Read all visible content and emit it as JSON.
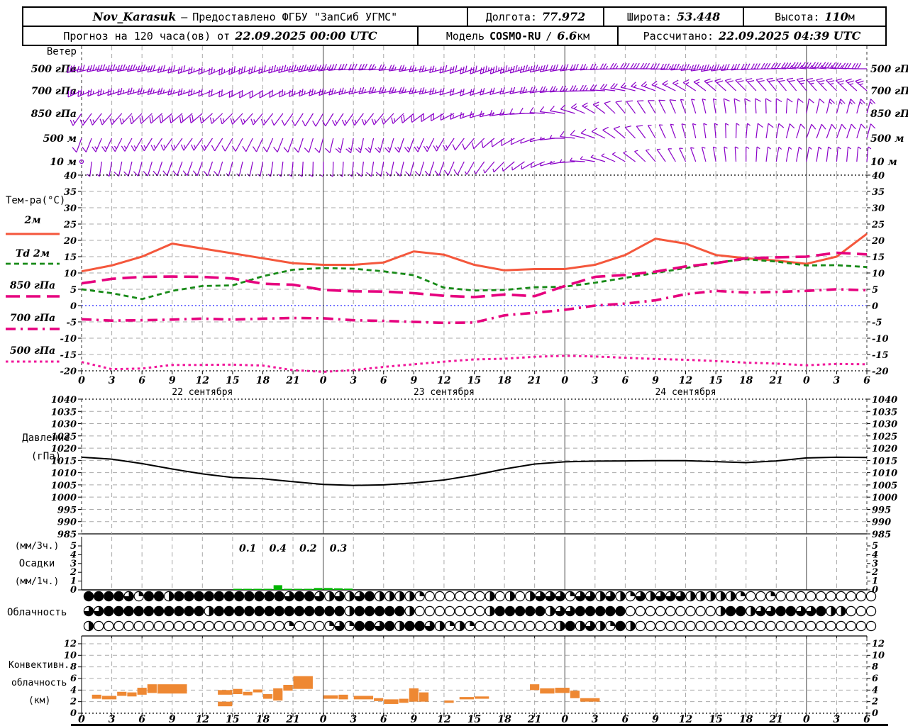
{
  "header": {
    "row1": {
      "station": "Nov_Karasuk",
      "dash": "–",
      "provided": "Предоставлено ФГБУ \"ЗапСиб УГМС\"",
      "lon_label": "Долгота:",
      "lon_value": "77.972",
      "lat_label": "Широта:",
      "lat_value": "53.448",
      "alt_label": "Высота:",
      "alt_value": "110",
      "alt_unit": "м"
    },
    "row2": {
      "forecast_label": "Прогноз на 120 часа(ов) от",
      "forecast_time": "22.09.2025 00:00 UTC",
      "model_label": "Модель",
      "model_name": "COSMO-RU",
      "model_slash": "/",
      "model_res": "6.6",
      "model_res_unit": "км",
      "calc_label": "Рассчитано:",
      "calc_time": "22.09.2025 04:39 UTC"
    }
  },
  "chart_data": {
    "type": "meteogram",
    "x_axis": {
      "hours_range": [
        0,
        78
      ],
      "hours_step": 3,
      "hour_labels": [
        "0",
        "3",
        "6",
        "9",
        "12",
        "15",
        "18",
        "21",
        "0",
        "3",
        "6",
        "9",
        "12",
        "15",
        "18",
        "21",
        "0",
        "3",
        "6",
        "9",
        "12",
        "15",
        "18",
        "21",
        "0",
        "3",
        "6"
      ],
      "date_labels": [
        {
          "text": "22 сентября",
          "hour": 12
        },
        {
          "text": "23 сентября",
          "hour": 36
        },
        {
          "text": "24 сентября",
          "hour": 60
        }
      ]
    },
    "hours_3h": [
      0,
      3,
      6,
      9,
      12,
      15,
      18,
      21,
      24,
      27,
      30,
      33,
      36,
      39,
      42,
      45,
      48,
      51,
      54,
      57,
      60,
      63,
      66,
      69,
      72,
      75,
      78
    ],
    "wind": {
      "panel_label": "Ветер",
      "barb_color": "#8A00C8",
      "levels": [
        {
          "label": "500 гПа",
          "dir_deg": [
            255,
            260,
            260,
            255,
            250,
            245,
            250,
            255,
            260,
            265,
            265,
            260,
            255,
            250,
            250,
            255,
            260,
            265,
            270,
            270,
            265,
            260,
            265,
            270,
            275,
            275,
            270
          ],
          "speed_ms": [
            16,
            18,
            18,
            16,
            14,
            14,
            16,
            18,
            18,
            16,
            14,
            12,
            14,
            16,
            18,
            18,
            16,
            14,
            14,
            16,
            18,
            18,
            16,
            16,
            18,
            18,
            16
          ]
        },
        {
          "label": "700 гПа",
          "dir_deg": [
            245,
            250,
            255,
            255,
            250,
            245,
            240,
            245,
            250,
            255,
            260,
            260,
            255,
            250,
            255,
            260,
            265,
            270,
            280,
            290,
            300,
            310,
            315,
            320,
            320,
            315,
            310
          ],
          "speed_ms": [
            12,
            12,
            14,
            12,
            12,
            10,
            10,
            12,
            12,
            14,
            14,
            12,
            12,
            10,
            10,
            12,
            12,
            12,
            10,
            8,
            8,
            10,
            10,
            10,
            12,
            12,
            12
          ]
        },
        {
          "label": "850 гПа",
          "dir_deg": [
            215,
            220,
            225,
            230,
            230,
            225,
            220,
            215,
            210,
            215,
            220,
            230,
            240,
            250,
            260,
            270,
            280,
            300,
            320,
            330,
            340,
            350,
            355,
            0,
            10,
            15,
            15
          ],
          "speed_ms": [
            8,
            8,
            10,
            10,
            10,
            8,
            8,
            6,
            6,
            8,
            8,
            10,
            10,
            8,
            8,
            6,
            6,
            8,
            6,
            6,
            4,
            4,
            6,
            6,
            6,
            8,
            8
          ]
        },
        {
          "label": "500 м",
          "dir_deg": [
            200,
            205,
            210,
            215,
            215,
            210,
            205,
            200,
            195,
            190,
            195,
            200,
            210,
            220,
            235,
            250,
            270,
            290,
            310,
            330,
            345,
            355,
            5,
            10,
            20,
            20,
            15
          ],
          "speed_ms": [
            6,
            8,
            8,
            8,
            8,
            6,
            6,
            6,
            6,
            8,
            8,
            8,
            8,
            6,
            6,
            4,
            4,
            6,
            6,
            4,
            4,
            4,
            4,
            6,
            6,
            6,
            6
          ]
        },
        {
          "label": "10 м",
          "dir_deg": [
            185,
            190,
            195,
            200,
            200,
            195,
            190,
            185,
            180,
            185,
            190,
            195,
            200,
            210,
            225,
            240,
            260,
            280,
            300,
            320,
            335,
            350,
            0,
            10,
            10,
            5,
            5
          ],
          "speed_ms": [
            1,
            4,
            6,
            6,
            6,
            4,
            4,
            4,
            4,
            4,
            6,
            6,
            6,
            4,
            4,
            2,
            2,
            4,
            4,
            2,
            2,
            2,
            2,
            4,
            4,
            4,
            4
          ]
        }
      ]
    },
    "temperature": {
      "panel_label": "Тем-ра(°C)",
      "ylim": [
        -20,
        40
      ],
      "yticks": [
        40,
        35,
        30,
        25,
        20,
        15,
        10,
        5,
        0,
        -5,
        -10,
        -15,
        -20
      ],
      "zero_line_color": "#4848FF",
      "series": [
        {
          "key": "t2m",
          "label": "2м",
          "color": "#F4573C",
          "style": "solid",
          "values": [
            10.5,
            12.3,
            15.0,
            19.0,
            17.5,
            16.0,
            14.5,
            13.0,
            12.5,
            12.5,
            13.2,
            16.6,
            15.6,
            12.5,
            10.8,
            11.2,
            11.2,
            12.5,
            15.5,
            20.5,
            19.0,
            15.5,
            14.5,
            13.8,
            12.8,
            15.0,
            22.0
          ]
        },
        {
          "key": "td2m",
          "label": "Td  2м",
          "color": "#178A17",
          "style": "dashed",
          "values": [
            5.0,
            3.8,
            2.0,
            4.5,
            6.0,
            6.2,
            9.0,
            11.0,
            11.5,
            11.3,
            10.5,
            9.3,
            5.5,
            4.6,
            4.8,
            5.6,
            5.8,
            7.0,
            8.5,
            10.0,
            11.5,
            13.2,
            14.2,
            13.5,
            12.3,
            12.4,
            11.8
          ]
        },
        {
          "key": "t850",
          "label": "850 гПа",
          "color": "#E6007E",
          "style": "longdash",
          "values": [
            6.8,
            8.2,
            8.8,
            8.9,
            8.8,
            8.3,
            6.7,
            6.4,
            4.8,
            4.4,
            4.3,
            3.8,
            3.0,
            2.6,
            3.4,
            2.9,
            6.0,
            8.8,
            9.4,
            10.4,
            12.0,
            13.0,
            14.5,
            14.8,
            15.0,
            16.2,
            15.7
          ]
        },
        {
          "key": "t700",
          "label": "700 гПа",
          "color": "#E6007E",
          "style": "dashdot",
          "values": [
            -4.2,
            -4.6,
            -4.5,
            -4.3,
            -4.0,
            -4.3,
            -4.0,
            -3.8,
            -3.9,
            -4.5,
            -4.7,
            -5.0,
            -5.3,
            -5.2,
            -3.0,
            -2.2,
            -1.3,
            0.0,
            0.6,
            1.6,
            3.5,
            4.5,
            4.0,
            4.2,
            4.5,
            5.0,
            4.7
          ]
        },
        {
          "key": "t500",
          "label": "500 гПа",
          "color": "#F0189B",
          "style": "dotted",
          "values": [
            -17.3,
            -19.5,
            -19.3,
            -18.2,
            -18.2,
            -18.1,
            -18.4,
            -19.8,
            -20.3,
            -19.8,
            -18.8,
            -18.0,
            -17.2,
            -16.5,
            -16.3,
            -15.7,
            -15.4,
            -15.6,
            -16.0,
            -16.4,
            -16.6,
            -17.0,
            -17.5,
            -17.8,
            -18.3,
            -17.9,
            -18.0
          ]
        }
      ]
    },
    "pressure": {
      "panel_label_1": "Давление",
      "panel_label_2": "(гПа)",
      "ylim": [
        985,
        1040
      ],
      "yticks": [
        1040,
        1035,
        1030,
        1025,
        1020,
        1015,
        1010,
        1005,
        1000,
        995,
        990,
        985
      ],
      "color": "#000000",
      "values": [
        1016.3,
        1015.5,
        1013.7,
        1011.5,
        1009.5,
        1008.0,
        1007.5,
        1006.3,
        1005.2,
        1004.8,
        1005.0,
        1005.8,
        1007.0,
        1009.0,
        1011.5,
        1013.5,
        1014.4,
        1014.7,
        1014.8,
        1014.9,
        1014.9,
        1014.5,
        1014.1,
        1014.8,
        1016.0,
        1016.3,
        1016.2
      ]
    },
    "precipitation": {
      "panel_labels": [
        "(мм/3ч.)",
        "Осадки",
        "(мм/1ч.)"
      ],
      "yticks": [
        5,
        4,
        3,
        2,
        1,
        0
      ],
      "bar_color": "#00B400",
      "sum_3h_labels": [
        {
          "hour_center": 16.5,
          "text": "0.1"
        },
        {
          "hour_center": 19.5,
          "text": "0.4"
        },
        {
          "hour_center": 22.5,
          "text": "0.2"
        },
        {
          "hour_center": 25.5,
          "text": "0.3"
        }
      ],
      "hourly_mm": [
        {
          "h": 15,
          "v": 0.02
        },
        {
          "h": 16,
          "v": 0.06
        },
        {
          "h": 17,
          "v": 0.02
        },
        {
          "h": 18,
          "v": 0.03
        },
        {
          "h": 19,
          "v": 0.3
        },
        {
          "h": 20,
          "v": 0.07
        },
        {
          "h": 21,
          "v": 0.02
        },
        {
          "h": 22,
          "v": 0.06
        },
        {
          "h": 23,
          "v": 0.12
        },
        {
          "h": 24,
          "v": 0.12
        },
        {
          "h": 25,
          "v": 0.1
        },
        {
          "h": 26,
          "v": 0.08
        }
      ]
    },
    "cloudiness": {
      "panel_label": "Облачность",
      "rows": [
        {
          "name": "row-upper",
          "okta8": [
            8,
            8,
            8,
            8,
            6,
            2,
            8,
            8,
            4,
            8,
            8,
            8,
            8,
            8,
            8,
            8,
            8,
            8,
            8,
            8,
            6,
            8,
            8,
            6,
            4,
            6,
            4,
            6,
            8,
            4,
            4,
            4,
            4,
            2,
            0,
            0,
            0,
            0,
            0,
            0,
            4,
            0,
            4,
            0,
            4,
            6,
            6,
            6,
            2,
            6,
            6,
            4,
            6,
            4,
            2,
            6,
            4,
            6,
            6,
            6,
            4,
            4,
            4,
            4,
            4,
            2,
            0,
            0,
            2,
            0,
            0,
            0,
            0,
            0,
            0,
            0,
            0,
            0,
            0
          ]
        },
        {
          "name": "row-middle",
          "okta8": [
            6,
            6,
            8,
            8,
            8,
            8,
            8,
            8,
            8,
            8,
            8,
            8,
            4,
            8,
            8,
            8,
            8,
            8,
            8,
            8,
            8,
            8,
            8,
            8,
            8,
            8,
            4,
            8,
            8,
            8,
            8,
            8,
            4,
            0,
            0,
            0,
            0,
            0,
            0,
            0,
            4,
            8,
            8,
            8,
            8,
            8,
            4,
            6,
            6,
            8,
            8,
            8,
            8,
            8,
            0,
            0,
            0,
            0,
            0,
            0,
            0,
            0,
            0,
            4,
            8,
            8,
            4,
            6,
            6,
            8,
            8,
            6,
            6,
            8,
            4,
            4,
            0,
            0,
            0
          ]
        },
        {
          "name": "row-lower",
          "okta8": [
            4,
            0,
            0,
            0,
            0,
            0,
            0,
            0,
            0,
            0,
            0,
            0,
            0,
            0,
            0,
            0,
            0,
            0,
            0,
            0,
            2,
            0,
            0,
            0,
            2,
            6,
            2,
            8,
            8,
            6,
            8,
            4,
            8,
            8,
            6,
            4,
            2,
            4,
            2,
            0,
            0,
            0,
            0,
            0,
            0,
            0,
            0,
            4,
            8,
            4,
            6,
            4,
            2,
            8,
            4,
            0,
            0,
            0,
            0,
            0,
            0,
            0,
            0,
            0,
            0,
            0,
            0,
            0,
            0,
            0,
            0,
            0,
            0,
            0,
            0,
            0,
            0,
            0,
            0
          ]
        }
      ]
    },
    "convective": {
      "panel_labels": [
        "Конвективн.",
        "облачность",
        "(км)"
      ],
      "ylim": [
        0,
        12
      ],
      "yticks": [
        12,
        10,
        8,
        6,
        4,
        2,
        0
      ],
      "bar_color": "#EE8833",
      "layers_h1_h2_base_top": [
        [
          1,
          2,
          2.5,
          3.2
        ],
        [
          2,
          3.5,
          2.4,
          3.0
        ],
        [
          3.5,
          4.5,
          3.0,
          3.7
        ],
        [
          4.5,
          5.5,
          2.9,
          3.6
        ],
        [
          5.5,
          6.5,
          3.2,
          4.4
        ],
        [
          6.5,
          7.5,
          3.5,
          5.0
        ],
        [
          7.5,
          10.5,
          3.4,
          5.0
        ],
        [
          13.5,
          15,
          1.2,
          2.0
        ],
        [
          13.5,
          15,
          3.2,
          4.0
        ],
        [
          15,
          16,
          3.3,
          4.2
        ],
        [
          16,
          17,
          3.1,
          3.7
        ],
        [
          17,
          18,
          3.6,
          4.1
        ],
        [
          18,
          19,
          2.5,
          3.3
        ],
        [
          19,
          20,
          2.2,
          4.3
        ],
        [
          20,
          21,
          3.9,
          4.9
        ],
        [
          21,
          23,
          4.2,
          6.4
        ],
        [
          24,
          25.5,
          2.5,
          3.1
        ],
        [
          25.5,
          26.5,
          2.4,
          3.2
        ],
        [
          27,
          29,
          2.4,
          3.0
        ],
        [
          29,
          30,
          2.1,
          2.6
        ],
        [
          30,
          31.5,
          1.6,
          2.4
        ],
        [
          31.5,
          32.5,
          1.8,
          2.5
        ],
        [
          32.5,
          33.5,
          2.0,
          4.3
        ],
        [
          33.5,
          34.5,
          2.0,
          3.6
        ],
        [
          36,
          37,
          1.8,
          2.2
        ],
        [
          37.5,
          39,
          2.4,
          2.8
        ],
        [
          39,
          40.5,
          2.5,
          2.9
        ],
        [
          44.5,
          45.5,
          4.0,
          5.0
        ],
        [
          45.5,
          47,
          3.4,
          4.3
        ],
        [
          47,
          48.5,
          3.5,
          4.4
        ],
        [
          48.5,
          49.5,
          2.6,
          3.9
        ],
        [
          49.5,
          51.5,
          2.0,
          2.6
        ]
      ]
    },
    "colors": {
      "grid": "#A9A9A9",
      "day_boundary": "#444444",
      "axis": "#000000"
    }
  }
}
